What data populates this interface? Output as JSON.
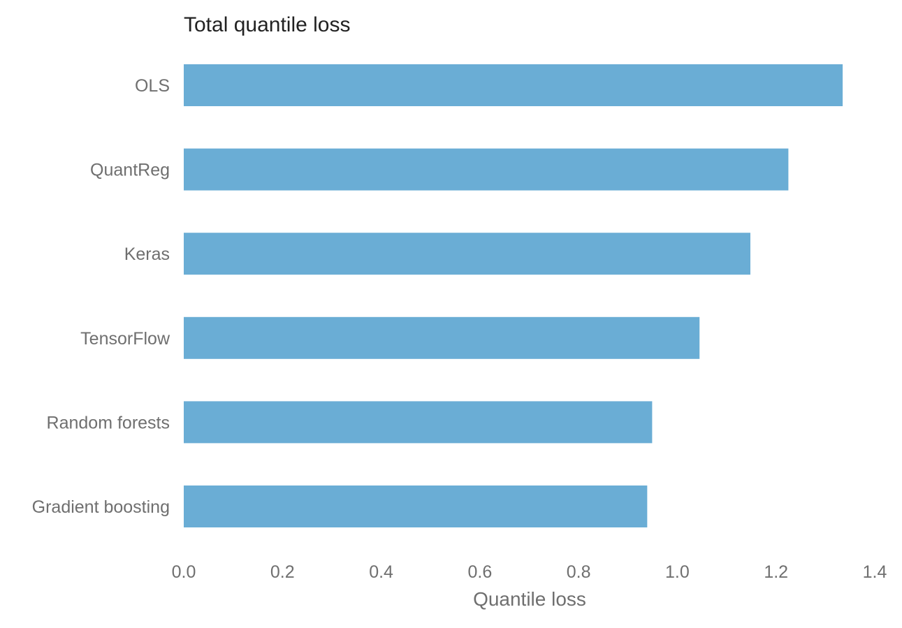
{
  "chart_data": {
    "type": "bar",
    "orientation": "horizontal",
    "title": "Total quantile loss",
    "xlabel": "Quantile loss",
    "ylabel": "",
    "categories": [
      "OLS",
      "QuantReg",
      "Keras",
      "TensorFlow",
      "Random forests",
      "Gradient boosting"
    ],
    "values": [
      1.335,
      1.225,
      1.148,
      1.045,
      0.949,
      0.939
    ],
    "xlim": [
      0.0,
      1.4
    ],
    "xticks": [
      "0.0",
      "0.2",
      "0.4",
      "0.6",
      "0.8",
      "1.0",
      "1.2",
      "1.4"
    ],
    "grid": false,
    "legend": "none",
    "bar_color": "#6aadd5"
  }
}
